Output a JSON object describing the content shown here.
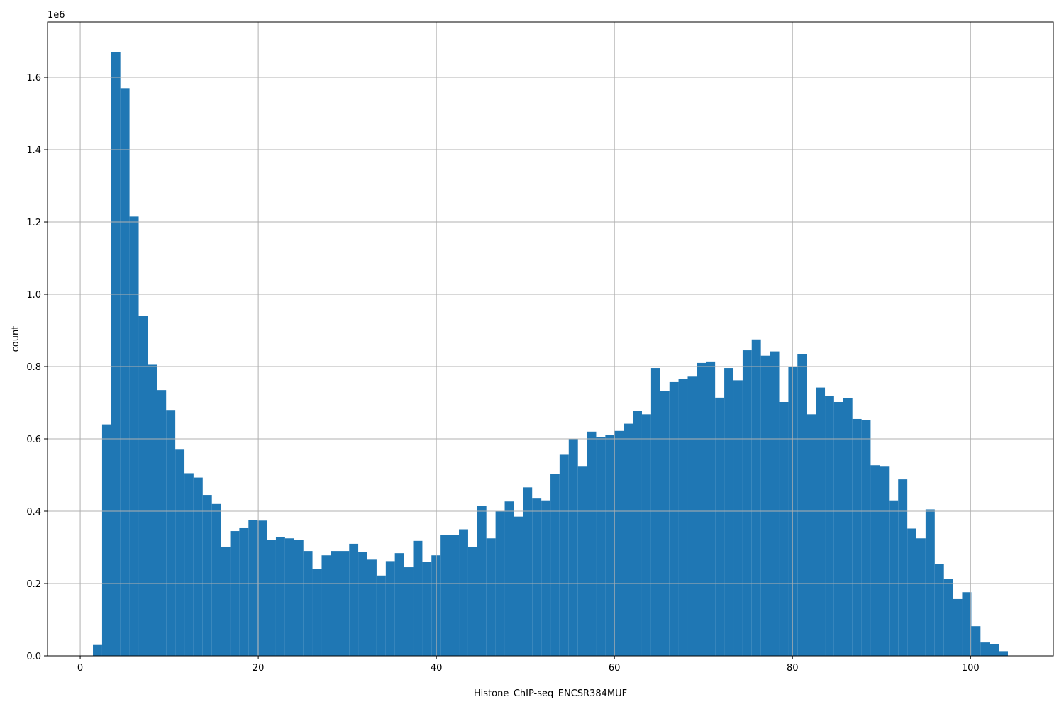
{
  "chart_data": {
    "type": "histogram",
    "xlabel": "Histone_ChIP-seq_ENCSR384MUF",
    "ylabel": "count",
    "y_offset_label": "1e6",
    "color": "#1f77b4",
    "grid": true,
    "xlim": [
      -3.67,
      109.3
    ],
    "ylim": [
      0,
      1753000
    ],
    "xticks": [
      0,
      20,
      40,
      60,
      80,
      100
    ],
    "yticks": [
      {
        "value": 0,
        "label": "0.0"
      },
      {
        "value": 200000,
        "label": "0.2"
      },
      {
        "value": 400000,
        "label": "0.4"
      },
      {
        "value": 600000,
        "label": "0.6"
      },
      {
        "value": 800000,
        "label": "0.8"
      },
      {
        "value": 1000000,
        "label": "1.0"
      },
      {
        "value": 1200000,
        "label": "1.2"
      },
      {
        "value": 1400000,
        "label": "1.4"
      },
      {
        "value": 1600000,
        "label": "1.6"
      }
    ],
    "bins": [
      1.43,
      2.46,
      3.49,
      4.51,
      5.54,
      6.57,
      7.6,
      8.62,
      9.65,
      10.68,
      11.71,
      12.73,
      13.76,
      14.79,
      15.82,
      16.85,
      17.87,
      18.9,
      19.93,
      20.96,
      21.98,
      23.01,
      24.04,
      25.07,
      26.09,
      27.12,
      28.15,
      29.18,
      30.21,
      31.23,
      32.26,
      33.29,
      34.32,
      35.34,
      36.37,
      37.4,
      38.43,
      39.45,
      40.48,
      41.51,
      42.54,
      43.57,
      44.59,
      45.62,
      46.65,
      47.68,
      48.7,
      49.73,
      50.76,
      51.79,
      52.82,
      53.84,
      54.87,
      55.9,
      56.93,
      57.95,
      58.98,
      60.01,
      61.04,
      62.06,
      63.09,
      64.12,
      65.15,
      66.18,
      67.2,
      68.23,
      69.26,
      70.29,
      71.31,
      72.34,
      73.37,
      74.4,
      75.42,
      76.45,
      77.48,
      78.51,
      79.54,
      80.56,
      81.59,
      82.62,
      83.65,
      84.67,
      85.7,
      86.73,
      87.76,
      88.78,
      89.81,
      90.84,
      91.87,
      92.9,
      93.92,
      94.95,
      95.98,
      97.01,
      98.03,
      99.06,
      100.09,
      101.12,
      102.14,
      103.17,
      104.2
    ],
    "values": [
      30000,
      640000,
      1670000,
      1570000,
      1215000,
      940000,
      805000,
      735000,
      680000,
      572000,
      505000,
      493000,
      445000,
      420000,
      302000,
      345000,
      353000,
      376000,
      374000,
      320000,
      328000,
      325000,
      321000,
      290000,
      240000,
      278000,
      290000,
      290000,
      310000,
      288000,
      266000,
      222000,
      262000,
      284000,
      245000,
      318000,
      260000,
      278000,
      335000,
      335000,
      350000,
      302000,
      415000,
      325000,
      400000,
      427000,
      385000,
      466000,
      435000,
      430000,
      503000,
      556000,
      600000,
      525000,
      620000,
      605000,
      610000,
      622000,
      642000,
      678000,
      668000,
      796000,
      732000,
      757000,
      765000,
      772000,
      810000,
      814000,
      714000,
      796000,
      762000,
      845000,
      875000,
      830000,
      842000,
      702000,
      800000,
      835000,
      668000,
      742000,
      718000,
      702000,
      713000,
      655000,
      652000,
      527000,
      525000,
      430000,
      488000,
      352000,
      325000,
      405000,
      253000,
      212000,
      157000,
      176000,
      82000,
      37000,
      33000,
      13000
    ]
  }
}
